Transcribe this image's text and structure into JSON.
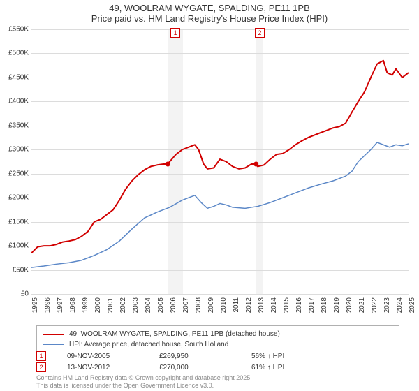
{
  "title": {
    "line1": "49, WOOLRAM WYGATE, SPALDING, PE11 1PB",
    "line2": "Price paid vs. HM Land Registry's House Price Index (HPI)"
  },
  "chart": {
    "type": "line",
    "x_years": [
      1995,
      1996,
      1997,
      1998,
      1999,
      2000,
      2001,
      2002,
      2003,
      2004,
      2005,
      2006,
      2007,
      2008,
      2009,
      2010,
      2011,
      2012,
      2013,
      2014,
      2015,
      2016,
      2017,
      2018,
      2019,
      2020,
      2021,
      2022,
      2023,
      2024,
      2025
    ],
    "ylim": [
      0,
      550000
    ],
    "ytick_step": 50000,
    "ytick_labels": [
      "£0",
      "£50K",
      "£100K",
      "£150K",
      "£200K",
      "£250K",
      "£300K",
      "£350K",
      "£400K",
      "£450K",
      "£500K",
      "£550K"
    ],
    "background_color": "#ffffff",
    "grid_color": "#dcdcdc",
    "axis_color": "#808080",
    "shaded_regions": [
      {
        "x_start": 2005.85,
        "x_end": 2007.05,
        "label": "1"
      },
      {
        "x_start": 2012.87,
        "x_end": 2013.45,
        "label": "2"
      }
    ],
    "series": [
      {
        "name": "price_paid",
        "label": "49, WOOLRAM WYGATE, SPALDING, PE11 1PB (detached house)",
        "color": "#d10000",
        "line_width": 2,
        "data": [
          [
            1995,
            85000
          ],
          [
            1995.5,
            98000
          ],
          [
            1996,
            100000
          ],
          [
            1996.5,
            100000
          ],
          [
            1997,
            103000
          ],
          [
            1997.5,
            108000
          ],
          [
            1998,
            110000
          ],
          [
            1998.5,
            113000
          ],
          [
            1999,
            120000
          ],
          [
            1999.5,
            130000
          ],
          [
            2000,
            150000
          ],
          [
            2000.5,
            155000
          ],
          [
            2001,
            165000
          ],
          [
            2001.5,
            175000
          ],
          [
            2002,
            195000
          ],
          [
            2002.5,
            218000
          ],
          [
            2003,
            235000
          ],
          [
            2003.5,
            248000
          ],
          [
            2004,
            258000
          ],
          [
            2004.5,
            265000
          ],
          [
            2005,
            268000
          ],
          [
            2005.5,
            270000
          ],
          [
            2005.85,
            269950
          ],
          [
            2006,
            275000
          ],
          [
            2006.5,
            290000
          ],
          [
            2007,
            300000
          ],
          [
            2007.5,
            305000
          ],
          [
            2008,
            310000
          ],
          [
            2008.3,
            300000
          ],
          [
            2008.7,
            270000
          ],
          [
            2009,
            260000
          ],
          [
            2009.5,
            262000
          ],
          [
            2010,
            280000
          ],
          [
            2010.5,
            275000
          ],
          [
            2011,
            265000
          ],
          [
            2011.5,
            260000
          ],
          [
            2012,
            262000
          ],
          [
            2012.5,
            270000
          ],
          [
            2012.87,
            270000
          ],
          [
            2013,
            265000
          ],
          [
            2013.5,
            268000
          ],
          [
            2014,
            280000
          ],
          [
            2014.5,
            290000
          ],
          [
            2015,
            292000
          ],
          [
            2015.5,
            300000
          ],
          [
            2016,
            310000
          ],
          [
            2016.5,
            318000
          ],
          [
            2017,
            325000
          ],
          [
            2017.5,
            330000
          ],
          [
            2018,
            335000
          ],
          [
            2018.5,
            340000
          ],
          [
            2019,
            345000
          ],
          [
            2019.5,
            348000
          ],
          [
            2020,
            355000
          ],
          [
            2020.5,
            378000
          ],
          [
            2021,
            400000
          ],
          [
            2021.5,
            420000
          ],
          [
            2022,
            450000
          ],
          [
            2022.5,
            478000
          ],
          [
            2023,
            485000
          ],
          [
            2023.3,
            460000
          ],
          [
            2023.7,
            455000
          ],
          [
            2024,
            468000
          ],
          [
            2024.5,
            450000
          ],
          [
            2025,
            460000
          ]
        ],
        "markers": [
          [
            2005.85,
            269950
          ],
          [
            2012.87,
            270000
          ]
        ]
      },
      {
        "name": "hpi",
        "label": "HPI: Average price, detached house, South Holland",
        "color": "#5b87c7",
        "line_width": 1.5,
        "data": [
          [
            1995,
            55000
          ],
          [
            1996,
            58000
          ],
          [
            1997,
            62000
          ],
          [
            1998,
            65000
          ],
          [
            1999,
            70000
          ],
          [
            2000,
            80000
          ],
          [
            2001,
            92000
          ],
          [
            2002,
            110000
          ],
          [
            2003,
            135000
          ],
          [
            2004,
            158000
          ],
          [
            2005,
            170000
          ],
          [
            2006,
            180000
          ],
          [
            2007,
            195000
          ],
          [
            2007.5,
            200000
          ],
          [
            2008,
            205000
          ],
          [
            2008.5,
            190000
          ],
          [
            2009,
            178000
          ],
          [
            2009.5,
            182000
          ],
          [
            2010,
            188000
          ],
          [
            2010.5,
            185000
          ],
          [
            2011,
            180000
          ],
          [
            2012,
            178000
          ],
          [
            2012.5,
            180000
          ],
          [
            2013,
            182000
          ],
          [
            2014,
            190000
          ],
          [
            2015,
            200000
          ],
          [
            2016,
            210000
          ],
          [
            2017,
            220000
          ],
          [
            2018,
            228000
          ],
          [
            2019,
            235000
          ],
          [
            2020,
            245000
          ],
          [
            2020.5,
            255000
          ],
          [
            2021,
            275000
          ],
          [
            2022,
            300000
          ],
          [
            2022.5,
            315000
          ],
          [
            2023,
            310000
          ],
          [
            2023.5,
            305000
          ],
          [
            2024,
            310000
          ],
          [
            2024.5,
            308000
          ],
          [
            2025,
            312000
          ]
        ]
      }
    ]
  },
  "legend": {
    "items": [
      {
        "color": "#d10000",
        "width": 2,
        "label": "49, WOOLRAM WYGATE, SPALDING, PE11 1PB (detached house)"
      },
      {
        "color": "#5b87c7",
        "width": 1.5,
        "label": "HPI: Average price, detached house, South Holland"
      }
    ]
  },
  "transactions": [
    {
      "flag": "1",
      "date": "09-NOV-2005",
      "price": "£269,950",
      "pct": "56% ↑ HPI"
    },
    {
      "flag": "2",
      "date": "13-NOV-2012",
      "price": "£270,000",
      "pct": "61% ↑ HPI"
    }
  ],
  "footer": {
    "line1": "Contains HM Land Registry data © Crown copyright and database right 2025.",
    "line2": "This data is licensed under the Open Government Licence v3.0."
  }
}
